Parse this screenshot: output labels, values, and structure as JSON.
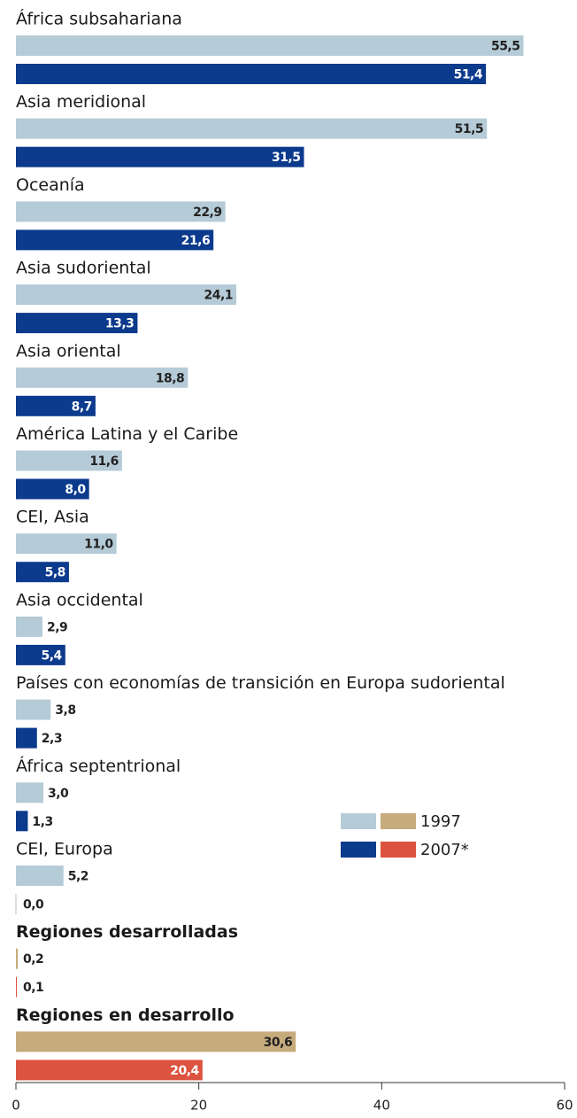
{
  "chart_data": {
    "type": "hbar",
    "categories": [
      "África subsahariana",
      "Asia meridional",
      "Oceanía",
      "Asia sudoriental",
      "Asia oriental",
      "América Latina y el Caribe",
      "CEI, Asia",
      "Asia occidental",
      "Países con economías de transición en Europa sudoriental",
      "África septentrional",
      "CEI, Europa",
      "Regiones desarrolladas",
      "Regiones en desarrollo"
    ],
    "highlight_index": [
      11,
      12
    ],
    "series": [
      {
        "name": "1997",
        "color": "#b5cbd7",
        "highlight_color": "#c6ab7c",
        "values": [
          55.5,
          51.5,
          22.9,
          24.1,
          18.8,
          11.6,
          11.0,
          2.9,
          3.8,
          3.0,
          5.2,
          0.2,
          30.6
        ],
        "value_labels": [
          "55,5",
          "51,5",
          "22,9",
          "24,1",
          "18,8",
          "11,6",
          "11,0",
          "2,9",
          "3,8",
          "3,0",
          "5,2",
          "0,2",
          "30,6"
        ]
      },
      {
        "name": "2007*",
        "color": "#0c3a8c",
        "highlight_color": "#dc533f",
        "values": [
          51.4,
          31.5,
          21.6,
          13.3,
          8.7,
          8.0,
          5.8,
          5.4,
          2.3,
          1.3,
          0.0,
          0.1,
          20.4
        ],
        "value_labels": [
          "51,4",
          "31,5",
          "21,6",
          "13,3",
          "8,7",
          "8,0",
          "5,8",
          "5,4",
          "2,3",
          "1,3",
          "0,0",
          "0,1",
          "20,4"
        ]
      }
    ],
    "xlim": [
      0,
      60
    ],
    "xticks": [
      0,
      20,
      40,
      60
    ]
  }
}
